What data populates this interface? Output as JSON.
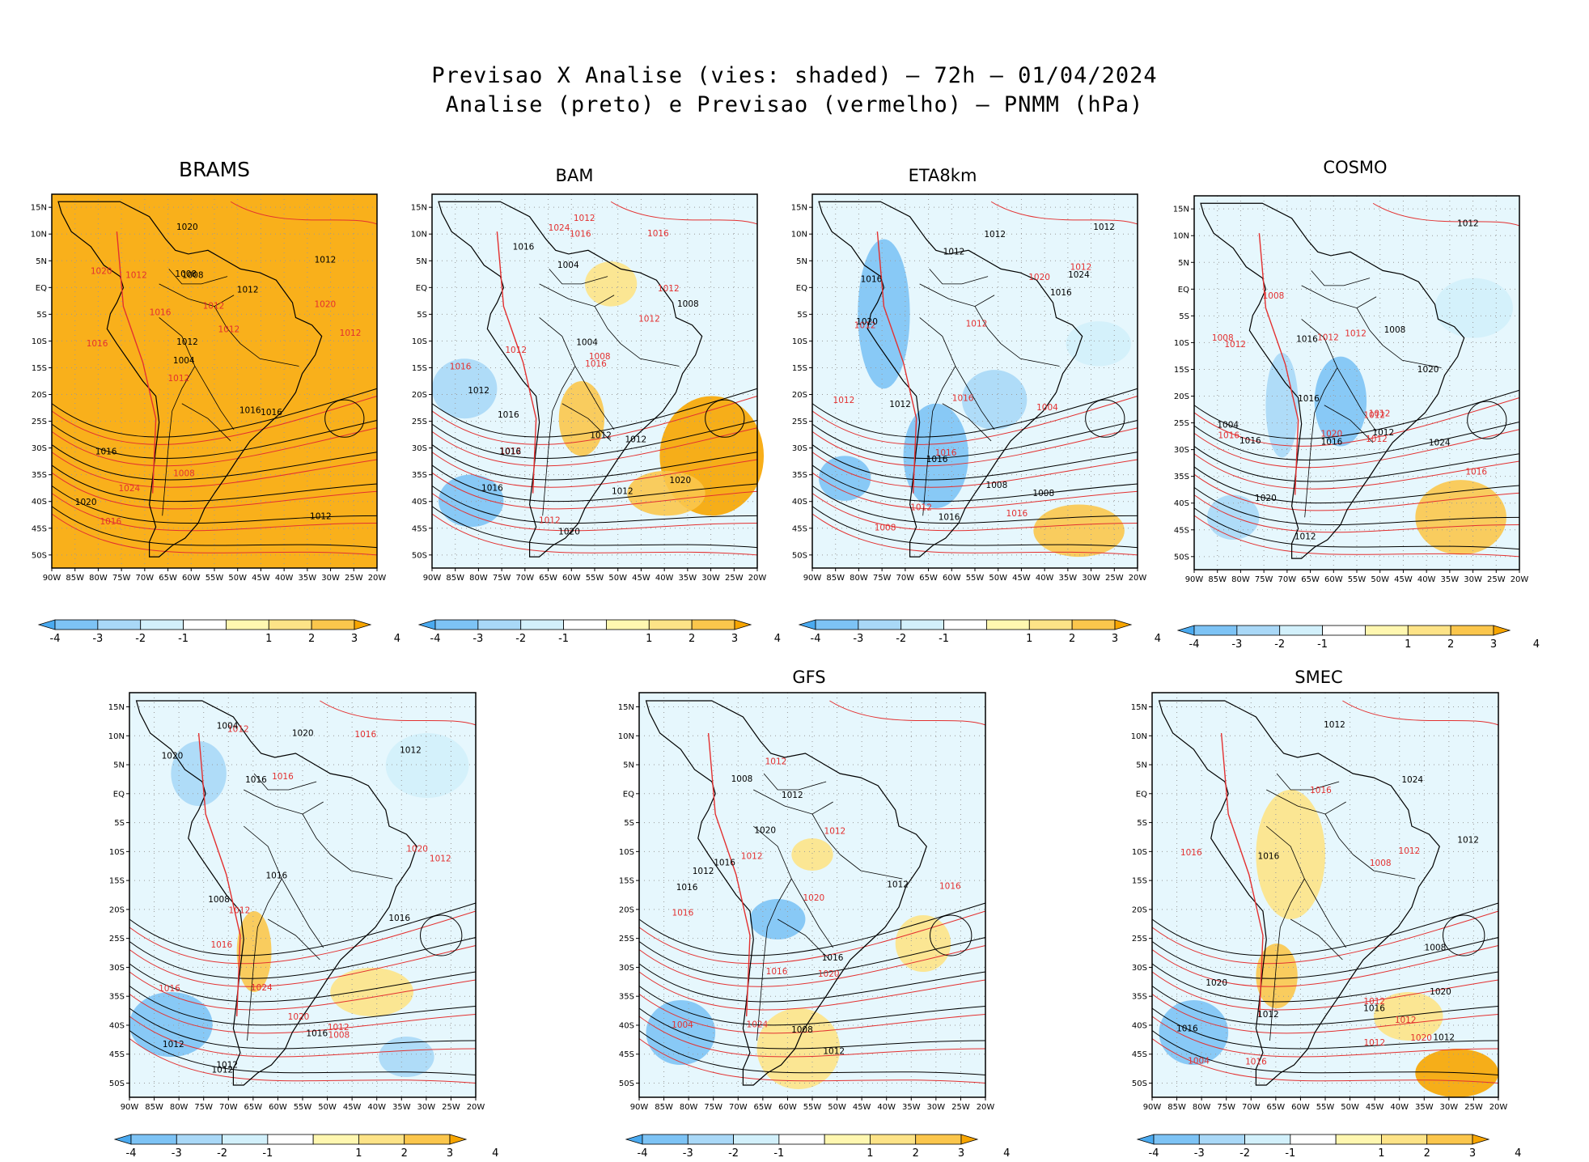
{
  "figure": {
    "title_line1": "Previsao X Analise (vies: shaded) – 72h – 01/04/2024",
    "title_line2": "Analise (preto) e Previsao (vermelho) – PNMM (hPa)"
  },
  "panels": [
    {
      "id": "brams",
      "title": "BRAMS"
    },
    {
      "id": "bam",
      "title": "BAM"
    },
    {
      "id": "eta8km",
      "title": "ETA8km"
    },
    {
      "id": "cosmo",
      "title": "COSMO"
    },
    {
      "id": "wrf",
      "title": ""
    },
    {
      "id": "gfs",
      "title": "GFS"
    },
    {
      "id": "smec",
      "title": "SMEC"
    }
  ],
  "axes": {
    "lat_labels": [
      "15N",
      "10N",
      "5N",
      "EQ",
      "5S",
      "10S",
      "15S",
      "20S",
      "25S",
      "30S",
      "35S",
      "40S",
      "45S",
      "50S"
    ],
    "lon_labels": [
      "90W",
      "85W",
      "80W",
      "75W",
      "70W",
      "65W",
      "60W",
      "55W",
      "50W",
      "45W",
      "40W",
      "35W",
      "30W",
      "25W",
      "20W"
    ]
  },
  "colorbar": {
    "labels": [
      "-4",
      "-3",
      "-2",
      "-1",
      "1",
      "2",
      "3",
      "4"
    ],
    "colors": [
      "#4aaaf0",
      "#7dc3f5",
      "#a9d8f7",
      "#d2f0fb",
      "#ffffff",
      "#fff7b0",
      "#fde387",
      "#fbc64c",
      "#f7a500"
    ]
  },
  "map_colors": {
    "analysis_contour": "#000000",
    "forecast_contour": "#e33030",
    "land_border": "#000000",
    "grid_dots": "#9a9a9a"
  },
  "isobar_labels": {
    "brams": [
      "1012",
      "1016",
      "1012",
      "1012",
      "1012",
      "1016",
      "1008",
      "1012",
      "1016",
      "1016",
      "1020",
      "1024",
      "1008",
      "1012",
      "1016",
      "1020",
      "1020",
      "1012",
      "1016",
      "1020",
      "1004",
      "1008",
      "1012",
      "1012"
    ],
    "bam": [
      "1016",
      "1016",
      "1016",
      "1012",
      "1012",
      "1012",
      "1016",
      "1012",
      "1008",
      "1012",
      "1012",
      "1012",
      "1012",
      "1016",
      "1020",
      "1024",
      "1020",
      "1016",
      "1016",
      "1012",
      "1012",
      "1016",
      "1004",
      "1008",
      "1004"
    ],
    "eta8km": [
      "1016",
      "1016",
      "1012",
      "1008",
      "1012",
      "1012",
      "1012",
      "1012",
      "1008",
      "1012",
      "1016",
      "1020",
      "1024",
      "1016",
      "1020",
      "1016",
      "1012",
      "1012",
      "1008",
      "1004",
      "1016",
      "1012",
      "1016"
    ],
    "cosmo": [
      "1012",
      "1012",
      "1012",
      "1012",
      "1016",
      "1012",
      "1020",
      "1012",
      "1016",
      "1012",
      "1020",
      "1008",
      "1016",
      "1020",
      "1024",
      "1016",
      "1008",
      "1016",
      "1012",
      "1008",
      "1004",
      "1012",
      "1016"
    ],
    "wrf": [
      "1016",
      "1016",
      "1012",
      "1012",
      "1012",
      "1020",
      "1016",
      "1012",
      "1012",
      "1020",
      "1008",
      "1012",
      "1016",
      "1024",
      "1020",
      "1016",
      "1020",
      "1016",
      "1012",
      "1008",
      "1004",
      "1012",
      "1016",
      "1016"
    ],
    "gfs": [
      "1016",
      "1016",
      "1012",
      "1012",
      "1012",
      "1012",
      "1020",
      "1016",
      "1012",
      "1012",
      "1008",
      "1020",
      "1016",
      "1024",
      "1016",
      "1020",
      "1008",
      "1004",
      "1012",
      "1016"
    ],
    "smec": [
      "1016",
      "1016",
      "1012",
      "1012",
      "1016",
      "1012",
      "1020",
      "1012",
      "1012",
      "1008",
      "1012",
      "1020",
      "1024",
      "1016",
      "1020",
      "1012",
      "1008",
      "1004",
      "1012",
      "1016",
      "1016"
    ]
  }
}
